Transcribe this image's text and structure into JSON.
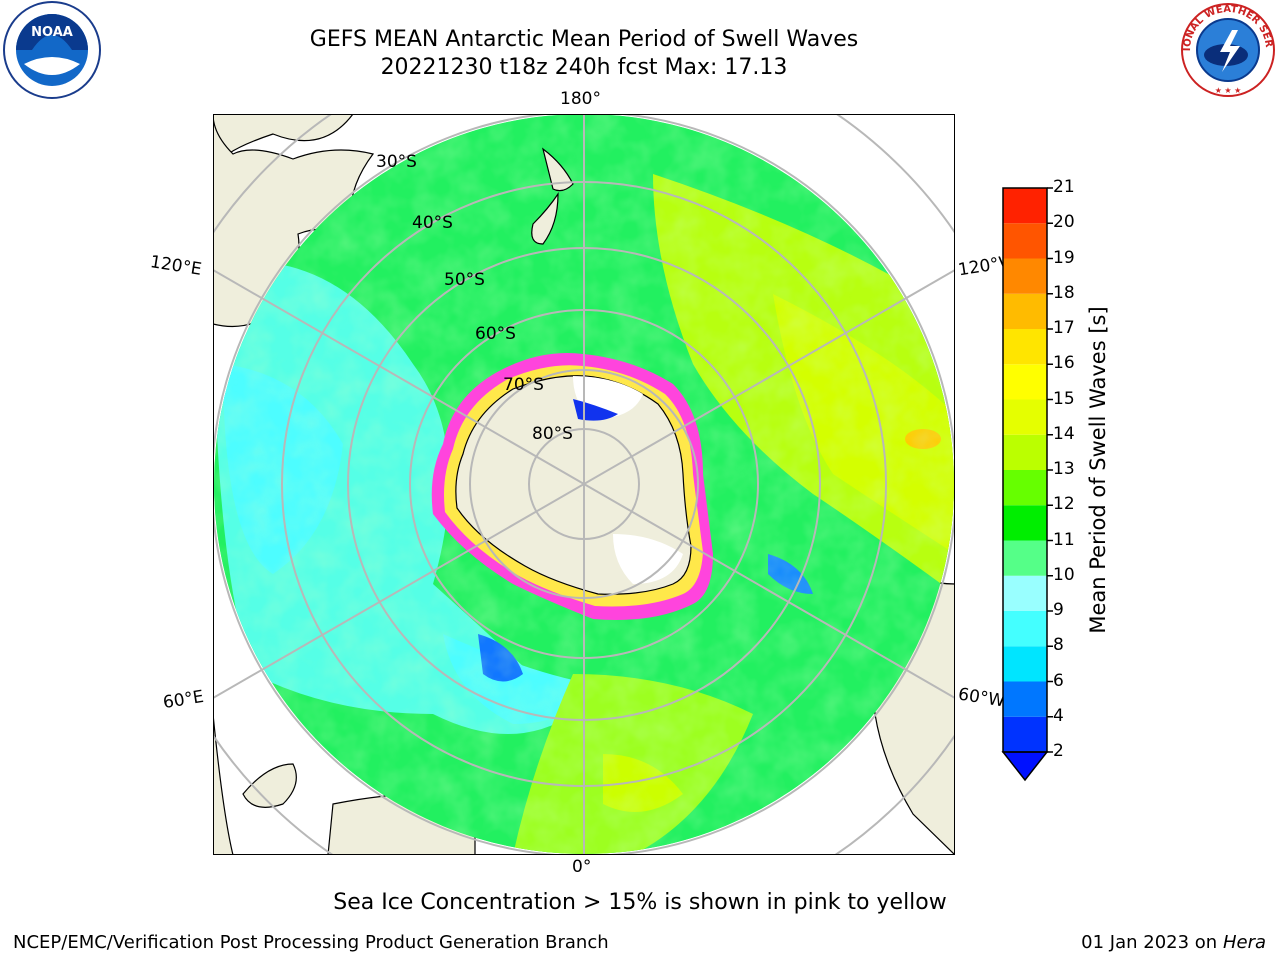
{
  "title": {
    "line1": "GEFS MEAN Antarctic Mean Period of Swell Waves",
    "line2": "20221230 t18z 240h fcst   Max: 17.13"
  },
  "logos": {
    "left": "noaa-logo",
    "left_text": "NOAA",
    "right": "national-weather-service-logo",
    "right_text": "NATIONAL WEATHER SERVICE"
  },
  "map": {
    "projection": "south-polar-stereographic",
    "longitude_labels": {
      "top": "180°",
      "bottom": "0°",
      "left_upper": "120°E",
      "left_lower": "60°E",
      "right_upper": "120°W",
      "right_lower": "60°W"
    },
    "latitude_labels": [
      "30°S",
      "40°S",
      "50°S",
      "60°S",
      "70°S",
      "80°S"
    ],
    "colors": {
      "land": "#efeedc",
      "ice_pink": "#ff44dd",
      "ice_yellow": "#ffe84a",
      "grid": "#b8b8b8"
    }
  },
  "colorbar": {
    "label": "Mean Period of Swell Waves [s]",
    "ticks": [
      "2",
      "4",
      "6",
      "8",
      "9",
      "10",
      "11",
      "12",
      "13",
      "14",
      "15",
      "16",
      "17",
      "18",
      "19",
      "20",
      "21"
    ],
    "colors": [
      "#0033ff",
      "#0077ff",
      "#00e5ff",
      "#44ffff",
      "#99ffff",
      "#55ff88",
      "#00ee00",
      "#66ff00",
      "#bbff00",
      "#e5ff00",
      "#ffff00",
      "#ffe500",
      "#ffbb00",
      "#ff8800",
      "#ff5500",
      "#ff2200"
    ],
    "extend": "min"
  },
  "footnote": "Sea Ice Concentration > 15% is shown in pink to yellow",
  "footer": {
    "left": "NCEP/EMC/Verification Post Processing Product Generation Branch",
    "date": "01 Jan 2023 on",
    "host": "Hera"
  }
}
